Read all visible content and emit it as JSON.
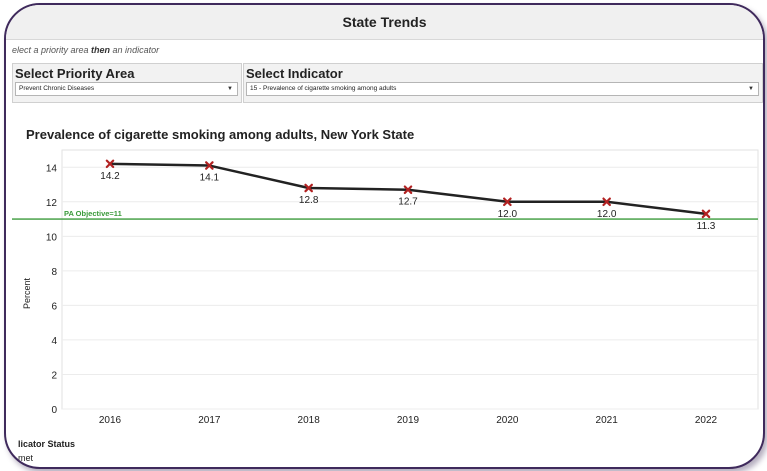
{
  "window": {
    "title": "State Trends"
  },
  "instructions": {
    "part1": "elect a priority area ",
    "bold": "then",
    "part2": " an indicator"
  },
  "filters": {
    "priority_area": {
      "label": "Select Priority Area",
      "value": "Prevent Chronic Diseases"
    },
    "indicator": {
      "label": "Select Indicator",
      "value": "15 - Prevalence of cigarette smoking among adults"
    }
  },
  "chart_data": {
    "type": "line",
    "title": "Prevalence of cigarette smoking among adults, New York State",
    "ylabel": "Percent",
    "xlabel": "",
    "x": [
      "2016",
      "2017",
      "2018",
      "2019",
      "2020",
      "2021",
      "2022"
    ],
    "series": [
      {
        "values": [
          14.2,
          14.1,
          12.8,
          12.7,
          12.0,
          12.0,
          11.3
        ],
        "color": "#222222",
        "marker_color": "#b22222"
      }
    ],
    "data_labels": [
      "14.2",
      "14.1",
      "12.8",
      "12.7",
      "12.0",
      "12.0",
      "11.3"
    ],
    "yticks": [
      0,
      2,
      4,
      6,
      8,
      10,
      12,
      14
    ],
    "ylim": [
      0,
      15
    ],
    "reference_line": {
      "value": 11,
      "label": "PA Objective=11",
      "color": "#3a9a3a"
    },
    "grid": true
  },
  "status": {
    "title": "licator Status",
    "value": "met"
  }
}
